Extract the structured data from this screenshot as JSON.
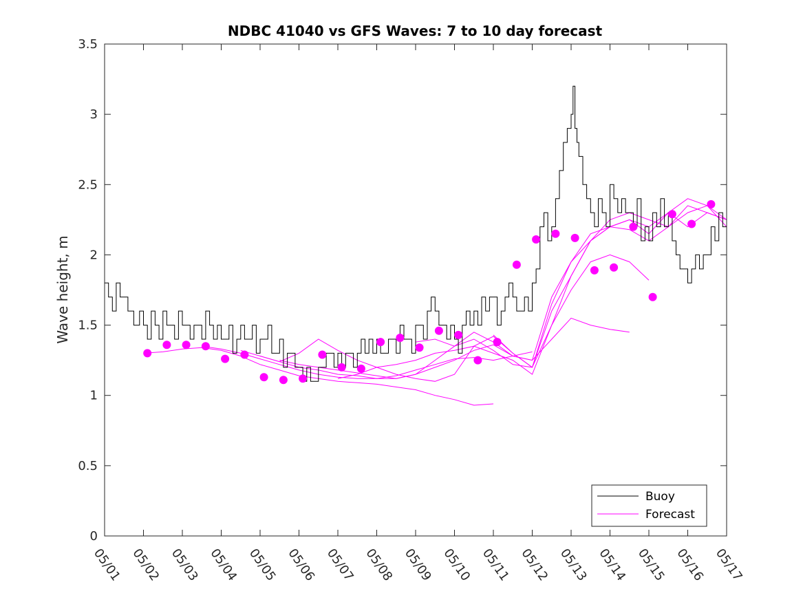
{
  "chart_data": {
    "type": "line",
    "title": "NDBC 41040 vs GFS Waves: 7 to 10 day forecast",
    "xlabel": "",
    "ylabel": "Wave height, m",
    "xlim": [
      "05/01",
      "05/17"
    ],
    "ylim": [
      0,
      3.5
    ],
    "x_ticks": [
      "05/01",
      "05/02",
      "05/03",
      "05/04",
      "05/05",
      "05/06",
      "05/07",
      "05/08",
      "05/09",
      "05/10",
      "05/11",
      "05/12",
      "05/13",
      "05/14",
      "05/15",
      "05/16",
      "05/17"
    ],
    "y_ticks": [
      "0",
      "0.5",
      "1",
      "1.5",
      "2",
      "2.5",
      "3",
      "3.5"
    ],
    "legend": {
      "position": "bottom-right",
      "entries": [
        "Buoy",
        "Forecast"
      ]
    },
    "colors": {
      "buoy": "#000000",
      "forecast": "#ff00ff"
    },
    "buoy": {
      "name": "Buoy",
      "x": [
        0.0,
        0.1,
        0.2,
        0.3,
        0.4,
        0.5,
        0.6,
        0.75,
        0.9,
        1.0,
        1.1,
        1.2,
        1.3,
        1.4,
        1.5,
        1.6,
        1.7,
        1.8,
        1.9,
        2.0,
        2.1,
        2.2,
        2.3,
        2.4,
        2.5,
        2.6,
        2.7,
        2.8,
        2.9,
        3.0,
        3.1,
        3.2,
        3.3,
        3.4,
        3.5,
        3.6,
        3.7,
        3.8,
        3.9,
        4.0,
        4.1,
        4.2,
        4.3,
        4.4,
        4.5,
        4.6,
        4.7,
        4.8,
        4.9,
        5.0,
        5.1,
        5.2,
        5.3,
        5.4,
        5.5,
        5.6,
        5.7,
        5.8,
        5.9,
        6.0,
        6.1,
        6.2,
        6.3,
        6.4,
        6.5,
        6.6,
        6.7,
        6.8,
        6.9,
        7.0,
        7.1,
        7.2,
        7.3,
        7.4,
        7.5,
        7.6,
        7.7,
        7.8,
        7.9,
        8.0,
        8.1,
        8.2,
        8.3,
        8.4,
        8.5,
        8.6,
        8.7,
        8.8,
        8.9,
        9.0,
        9.1,
        9.2,
        9.3,
        9.4,
        9.5,
        9.6,
        9.7,
        9.8,
        9.9,
        10.0,
        10.1,
        10.2,
        10.3,
        10.4,
        10.5,
        10.6,
        10.7,
        10.8,
        10.9,
        11.0,
        11.1,
        11.2,
        11.3,
        11.4,
        11.5,
        11.6,
        11.7,
        11.8,
        11.9,
        12.0,
        12.05,
        12.1,
        12.15,
        12.2,
        12.3,
        12.4,
        12.5,
        12.6,
        12.7,
        12.8,
        12.9,
        13.0,
        13.1,
        13.2,
        13.3,
        13.4,
        13.5,
        13.6,
        13.7,
        13.8,
        13.9,
        14.0,
        14.1,
        14.2,
        14.3,
        14.4,
        14.5,
        14.6,
        14.7,
        14.8,
        14.9,
        15.0,
        15.1,
        15.2,
        15.3,
        15.4,
        15.5,
        15.6,
        15.7,
        15.8,
        15.9,
        16.0,
        16.1
      ],
      "y": [
        1.8,
        1.7,
        1.6,
        1.8,
        1.7,
        1.7,
        1.6,
        1.5,
        1.6,
        1.5,
        1.4,
        1.6,
        1.5,
        1.4,
        1.6,
        1.5,
        1.5,
        1.4,
        1.6,
        1.5,
        1.5,
        1.4,
        1.5,
        1.5,
        1.4,
        1.6,
        1.5,
        1.4,
        1.5,
        1.4,
        1.4,
        1.5,
        1.3,
        1.4,
        1.5,
        1.4,
        1.4,
        1.5,
        1.3,
        1.4,
        1.4,
        1.5,
        1.3,
        1.3,
        1.4,
        1.2,
        1.3,
        1.3,
        1.2,
        1.2,
        1.1,
        1.2,
        1.1,
        1.1,
        1.2,
        1.2,
        1.3,
        1.3,
        1.2,
        1.3,
        1.2,
        1.3,
        1.3,
        1.2,
        1.3,
        1.4,
        1.3,
        1.4,
        1.3,
        1.4,
        1.3,
        1.3,
        1.4,
        1.4,
        1.3,
        1.5,
        1.4,
        1.4,
        1.3,
        1.5,
        1.5,
        1.4,
        1.6,
        1.7,
        1.6,
        1.5,
        1.5,
        1.4,
        1.5,
        1.4,
        1.3,
        1.5,
        1.6,
        1.5,
        1.6,
        1.5,
        1.7,
        1.6,
        1.7,
        1.7,
        1.5,
        1.6,
        1.7,
        1.8,
        1.7,
        1.6,
        1.6,
        1.7,
        1.6,
        1.8,
        1.9,
        2.2,
        2.3,
        2.1,
        2.2,
        2.4,
        2.6,
        2.8,
        2.9,
        3.0,
        3.2,
        2.9,
        2.8,
        2.7,
        2.5,
        2.4,
        2.3,
        2.2,
        2.4,
        2.3,
        2.2,
        2.5,
        2.4,
        2.3,
        2.4,
        2.3,
        2.3,
        2.2,
        2.4,
        2.1,
        2.2,
        2.1,
        2.3,
        2.2,
        2.4,
        2.2,
        2.3,
        2.1,
        2.0,
        1.9,
        1.9,
        1.8,
        1.9,
        2.0,
        1.9,
        2.0,
        2.0,
        2.2,
        2.1,
        2.3,
        2.2,
        2.2,
        2.3
      ]
    },
    "forecast": {
      "name": "Forecast",
      "curves": [
        {
          "x": [
            1.0,
            1.5,
            2.0,
            2.5,
            3.0,
            3.5,
            4.0,
            4.5,
            5.0,
            5.5,
            6.0,
            6.5,
            7.0,
            7.5,
            8.0,
            8.5,
            9.0,
            9.5,
            10.0
          ],
          "y": [
            1.3,
            1.31,
            1.33,
            1.34,
            1.32,
            1.28,
            1.22,
            1.18,
            1.14,
            1.12,
            1.1,
            1.09,
            1.08,
            1.06,
            1.04,
            1.0,
            0.97,
            0.93,
            0.94
          ]
        },
        {
          "x": [
            2.5,
            3.0,
            3.5,
            4.0,
            4.5,
            5.0,
            5.5,
            6.0,
            6.5,
            7.0,
            7.5,
            8.0,
            8.5,
            9.0,
            9.5,
            10.0,
            10.5,
            11.0
          ],
          "y": [
            1.35,
            1.33,
            1.3,
            1.26,
            1.22,
            1.18,
            1.15,
            1.13,
            1.12,
            1.12,
            1.14,
            1.18,
            1.22,
            1.26,
            1.27,
            1.25,
            1.28,
            1.31
          ]
        },
        {
          "x": [
            3.5,
            4.0,
            4.5,
            5.0,
            5.5,
            6.0,
            6.5,
            7.0,
            7.5,
            8.0,
            8.5,
            9.0,
            9.5,
            10.0,
            10.5,
            11.0,
            11.5,
            12.0,
            12.5,
            13.0,
            13.5
          ],
          "y": [
            1.32,
            1.28,
            1.24,
            1.2,
            1.18,
            1.15,
            1.14,
            1.12,
            1.12,
            1.15,
            1.2,
            1.25,
            1.32,
            1.36,
            1.28,
            1.25,
            1.4,
            1.55,
            1.5,
            1.47,
            1.45
          ]
        },
        {
          "x": [
            4.0,
            4.5,
            5.0,
            5.5,
            6.0,
            6.5,
            7.0,
            7.5,
            8.0,
            8.5,
            9.0,
            9.5,
            10.0,
            10.5,
            11.0,
            11.5,
            12.0,
            12.5,
            13.0,
            13.5,
            14.0
          ],
          "y": [
            1.28,
            1.24,
            1.3,
            1.4,
            1.32,
            1.25,
            1.2,
            1.15,
            1.12,
            1.1,
            1.15,
            1.35,
            1.42,
            1.3,
            1.2,
            1.5,
            1.75,
            1.95,
            2.0,
            1.95,
            1.82
          ]
        },
        {
          "x": [
            4.5,
            5.0,
            5.5,
            6.0,
            6.5,
            7.0,
            7.5,
            8.0,
            8.5,
            9.0,
            9.5,
            10.0,
            10.5,
            11.0,
            11.5,
            12.0,
            12.5,
            13.0,
            13.5,
            14.0,
            14.5,
            15.0,
            15.5,
            16.0
          ],
          "y": [
            1.25,
            1.22,
            1.2,
            1.18,
            1.16,
            1.14,
            1.12,
            1.15,
            1.25,
            1.35,
            1.4,
            1.32,
            1.22,
            1.2,
            1.6,
            1.85,
            2.1,
            2.25,
            2.3,
            2.25,
            2.2,
            2.3,
            2.35,
            2.25
          ]
        },
        {
          "x": [
            6.0,
            6.5,
            7.0,
            7.5,
            8.0,
            8.5,
            9.0,
            9.5,
            10.0,
            10.5,
            11.0,
            11.5,
            12.0,
            12.5,
            13.0,
            13.5,
            14.0,
            14.5,
            15.0,
            15.5,
            16.0,
            16.5,
            17.0
          ],
          "y": [
            1.12,
            1.15,
            1.2,
            1.22,
            1.25,
            1.3,
            1.32,
            1.35,
            1.3,
            1.25,
            1.15,
            1.5,
            1.85,
            2.1,
            2.2,
            2.25,
            2.2,
            2.3,
            2.4,
            2.35,
            2.2,
            2.3,
            2.2
          ]
        },
        {
          "x": [
            8.0,
            8.5,
            9.0,
            9.5,
            10.0,
            10.5,
            11.0,
            11.5,
            12.0,
            12.5,
            13.0,
            13.5,
            14.0,
            14.5,
            15.0,
            15.5,
            16.0,
            16.5,
            17.0
          ],
          "y": [
            1.38,
            1.4,
            1.35,
            1.45,
            1.38,
            1.28,
            1.25,
            1.7,
            1.95,
            2.15,
            2.2,
            2.18,
            2.1,
            2.2,
            2.35,
            2.3,
            2.25,
            2.35,
            2.4
          ]
        },
        {
          "x": [
            10.0,
            10.5,
            11.0,
            11.5,
            12.0,
            12.5,
            13.0,
            13.5,
            14.0,
            14.5,
            15.0,
            15.5,
            16.0,
            16.5,
            17.0
          ],
          "y": [
            1.43,
            1.3,
            1.2,
            1.65,
            1.95,
            2.1,
            2.2,
            2.25,
            2.15,
            2.3,
            2.2,
            2.3,
            2.25,
            2.3,
            2.15
          ]
        }
      ],
      "markers": {
        "x": [
          1.1,
          1.6,
          2.1,
          2.6,
          3.1,
          3.6,
          4.1,
          4.6,
          5.1,
          5.6,
          6.1,
          6.6,
          7.1,
          7.6,
          8.1,
          8.6,
          9.1,
          9.6,
          10.1,
          10.6,
          11.1,
          11.6,
          12.1,
          12.6,
          13.1,
          13.6,
          14.1,
          14.6,
          15.1,
          15.6,
          16.1,
          16.6
        ],
        "y": [
          1.3,
          1.36,
          1.36,
          1.35,
          1.26,
          1.29,
          1.13,
          1.11,
          1.12,
          1.29,
          1.2,
          1.19,
          1.38,
          1.41,
          1.34,
          1.46,
          1.43,
          1.25,
          1.38,
          1.93,
          2.11,
          2.15,
          2.12,
          1.89,
          1.91,
          2.2,
          1.7,
          2.29,
          2.22,
          2.36,
          2.36,
          2.36
        ]
      }
    }
  }
}
